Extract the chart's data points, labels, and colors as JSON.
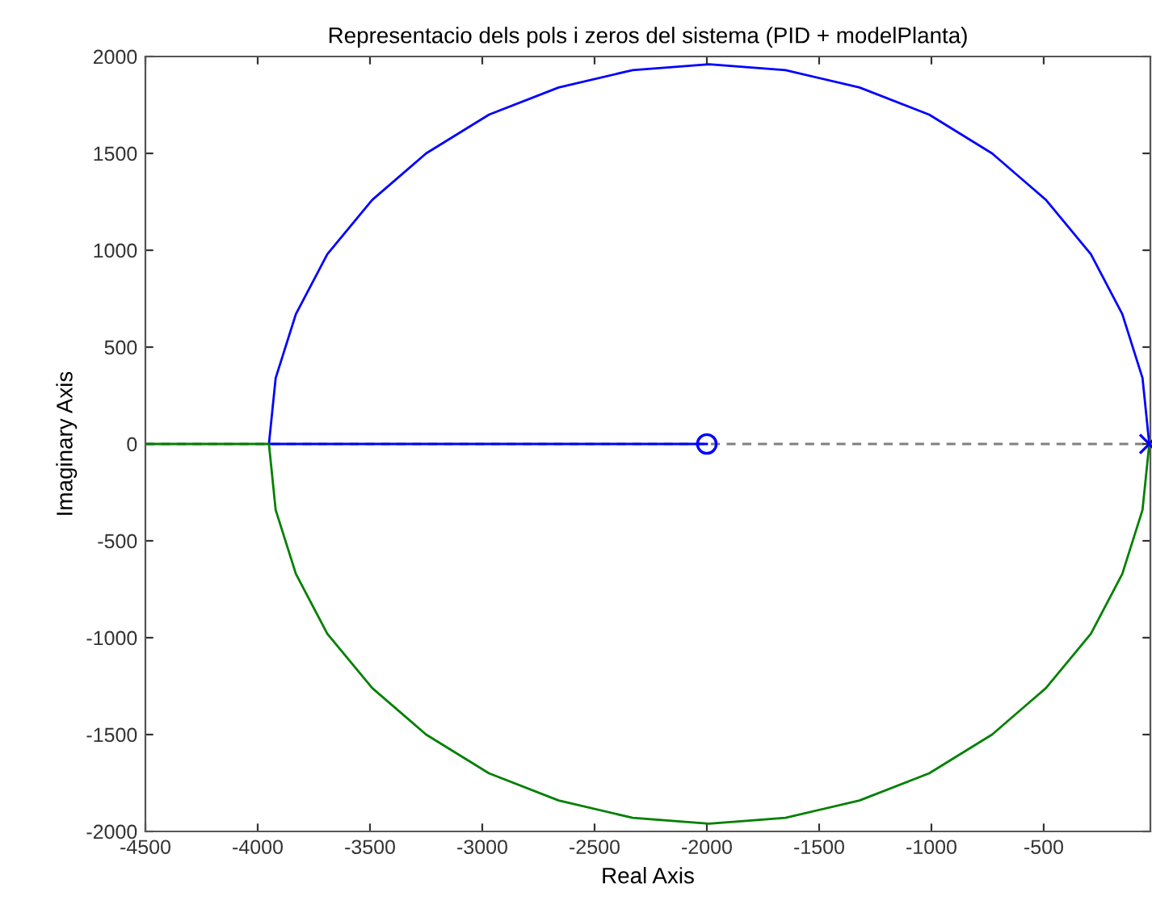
{
  "chart_data": {
    "type": "line",
    "title": "Representacio dels pols i zeros del sistema (PID + modelPlanta)",
    "xlabel": "Real Axis",
    "ylabel": "Imaginary Axis",
    "xlim": [
      -4500,
      -25
    ],
    "ylim": [
      -2000,
      2000
    ],
    "xticks": [
      -4500,
      -4000,
      -3500,
      -3000,
      -2500,
      -2000,
      -1500,
      -1000,
      -500
    ],
    "yticks": [
      -2000,
      -1500,
      -1000,
      -500,
      0,
      500,
      1000,
      1500,
      2000
    ],
    "grid": false,
    "legend": false,
    "ref_lines": [
      {
        "axis": "y",
        "value": 0,
        "color": "#808080",
        "line_style": "dashed"
      }
    ],
    "series": [
      {
        "color": "#0000ff",
        "marker": "none",
        "x": [
          -30,
          -60,
          -150,
          -290,
          -490,
          -730,
          -1010,
          -1320,
          -1650,
          -1990,
          -2330,
          -2660,
          -2970,
          -3250,
          -3490,
          -3690,
          -3830,
          -3920,
          -3950,
          -2000
        ],
        "values": [
          0,
          340,
          670,
          980,
          1260,
          1500,
          1700,
          1840,
          1930,
          1960,
          1930,
          1840,
          1700,
          1500,
          1260,
          980,
          670,
          340,
          0,
          0
        ]
      },
      {
        "color": "#008000",
        "marker": "none",
        "x": [
          -30,
          -60,
          -150,
          -290,
          -490,
          -730,
          -1010,
          -1320,
          -1650,
          -1990,
          -2330,
          -2660,
          -2970,
          -3250,
          -3490,
          -3690,
          -3830,
          -3920,
          -3950,
          -4500
        ],
        "values": [
          0,
          -340,
          -670,
          -980,
          -1260,
          -1500,
          -1700,
          -1840,
          -1930,
          -1960,
          -1930,
          -1840,
          -1700,
          -1500,
          -1260,
          -980,
          -670,
          -340,
          0,
          0
        ]
      },
      {
        "type": "scatter",
        "color": "#0000ff",
        "marker": "circle",
        "x": [
          -2000
        ],
        "values": [
          0
        ]
      },
      {
        "type": "scatter",
        "color": "#0000ff",
        "marker": "cross",
        "x": [
          -30
        ],
        "values": [
          0
        ]
      }
    ]
  }
}
